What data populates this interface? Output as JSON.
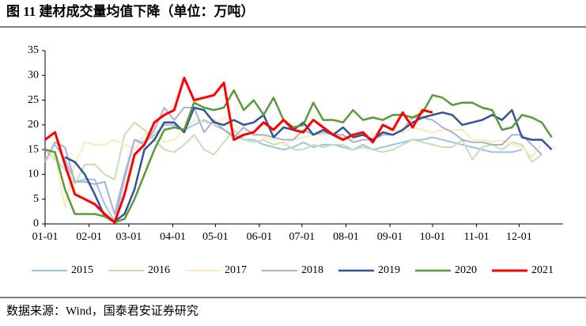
{
  "chart_data": {
    "type": "line",
    "title": "图 11 建材成交量均值下降（单位：万吨）",
    "source": "数据来源：Wind，国泰君安证券研究",
    "x": [
      0,
      7,
      14,
      21,
      28,
      35,
      42,
      49,
      56,
      63,
      70,
      77,
      84,
      91,
      98,
      105,
      112,
      119,
      126,
      133,
      140,
      147,
      154,
      161,
      168,
      175,
      182,
      189,
      196,
      203,
      210,
      217,
      224,
      231,
      238,
      245,
      252,
      259,
      266,
      273,
      280,
      287,
      294,
      301,
      308,
      315,
      322,
      329,
      336,
      343,
      350,
      357
    ],
    "xlim": [
      0,
      365
    ],
    "xticks": [
      {
        "value": 0,
        "label": "01-01"
      },
      {
        "value": 31,
        "label": "02-01"
      },
      {
        "value": 59,
        "label": "03-01"
      },
      {
        "value": 90,
        "label": "04-01"
      },
      {
        "value": 120,
        "label": "05-01"
      },
      {
        "value": 151,
        "label": "06-01"
      },
      {
        "value": 181,
        "label": "07-01"
      },
      {
        "value": 212,
        "label": "08-01"
      },
      {
        "value": 243,
        "label": "09-01"
      },
      {
        "value": 273,
        "label": "10-01"
      },
      {
        "value": 304,
        "label": "11-01"
      },
      {
        "value": 334,
        "label": "12-01"
      }
    ],
    "ylim": [
      0,
      35
    ],
    "yticks": [
      0,
      5,
      10,
      15,
      20,
      25,
      30,
      35
    ],
    "legend": "bottom",
    "series": [
      {
        "name": "2015",
        "color": "#9dc3e6",
        "width": 2,
        "values": [
          null,
          16,
          13,
          8.5,
          9,
          9,
          4,
          0.5,
          9,
          17,
          16.5,
          18,
          20,
          20,
          19,
          20,
          21,
          20,
          19,
          18,
          17,
          17,
          16,
          15.5,
          15,
          15.5,
          16.5,
          15.5,
          16,
          16,
          15.5,
          15,
          16,
          15,
          15.5,
          16,
          16.5,
          17,
          17,
          17.5,
          17,
          16.5,
          16,
          15.5,
          15,
          14.5,
          14.5,
          14.5,
          15,
          null,
          null,
          null
        ]
      },
      {
        "name": "2016",
        "color": "#c5e0b4",
        "width": 2,
        "values": [
          15,
          13,
          11,
          8,
          12,
          12,
          10,
          9,
          18,
          20.5,
          19,
          17,
          15,
          14.5,
          16,
          18,
          15,
          14,
          16.5,
          19,
          17,
          16.5,
          17,
          16,
          16.5,
          15,
          15,
          16,
          15.5,
          16,
          16,
          15,
          15.5,
          15,
          14.5,
          15,
          16,
          17,
          16.5,
          16,
          15.5,
          15.5,
          17,
          13,
          15.5,
          16,
          15,
          16.5,
          16,
          12.5,
          14,
          null
        ]
      },
      {
        "name": "2017",
        "color": "#ffe9b8",
        "width": 2,
        "values": [
          13,
          14,
          3.5,
          12,
          16.5,
          16,
          16,
          17,
          16,
          15,
          18,
          18.5,
          16.5,
          17,
          19,
          21,
          20.5,
          20,
          21.5,
          20,
          19,
          18.5,
          17.5,
          17,
          16,
          17,
          17.5,
          18,
          18,
          18.5,
          17.5,
          17,
          18,
          18,
          18.5,
          19,
          18.5,
          19.5,
          19,
          18.5,
          19,
          19,
          19,
          17,
          17,
          16.5,
          17,
          16,
          15.5,
          13.5,
          16,
          null
        ]
      },
      {
        "name": "2018",
        "color": "#a9b1cf",
        "width": 2,
        "values": [
          12.5,
          16.5,
          15.5,
          8.5,
          8.5,
          8,
          8.5,
          2,
          10,
          17,
          16,
          19,
          23.5,
          21,
          23.5,
          23.5,
          18.5,
          21,
          19,
          17.5,
          19.5,
          18,
          18,
          17.5,
          17,
          17,
          19,
          18,
          18.5,
          18,
          18,
          16.5,
          17,
          17,
          18,
          18,
          19,
          21.5,
          21.5,
          21,
          19.5,
          18.5,
          17,
          16.5,
          16.5,
          16,
          16,
          18,
          18,
          16,
          14,
          null
        ]
      },
      {
        "name": "2019",
        "color": "#2f5597",
        "width": 2.5,
        "values": [
          null,
          null,
          13.5,
          12.5,
          10,
          6,
          1.5,
          0.5,
          2,
          7,
          15,
          17,
          20.5,
          20.5,
          18.5,
          23.5,
          23,
          20.5,
          20,
          21,
          20,
          20.5,
          22,
          17.5,
          19.5,
          19,
          20.5,
          18,
          19,
          18,
          19.5,
          17.5,
          18,
          17,
          18.5,
          18,
          19,
          20.5,
          21.5,
          22,
          22.5,
          22,
          20,
          20.5,
          21,
          22,
          21,
          23,
          17.5,
          17,
          17,
          15
        ]
      },
      {
        "name": "2020",
        "color": "#5b9a3b",
        "width": 2.5,
        "values": [
          15,
          14.5,
          7,
          2,
          2,
          2,
          1.5,
          0.3,
          1,
          5,
          10,
          15,
          19,
          19.5,
          19,
          24.5,
          23.5,
          23,
          23.5,
          27,
          23,
          25,
          22,
          25.5,
          21,
          19.5,
          20,
          24.5,
          21,
          21,
          20.5,
          23,
          21,
          21.5,
          21,
          22,
          22,
          21.5,
          22.5,
          26,
          25.5,
          24,
          24.5,
          24.5,
          23.5,
          23,
          19,
          19.5,
          22,
          21.5,
          20.5,
          17.5
        ]
      },
      {
        "name": "2021",
        "color": "#ff0000",
        "width": 3,
        "values": [
          17,
          18.5,
          12,
          6,
          5,
          4,
          2,
          0.3,
          6,
          14,
          16,
          20.5,
          22,
          23,
          29.5,
          25,
          25.5,
          26,
          28.5,
          17,
          18,
          18.5,
          20.5,
          19,
          21,
          19,
          18.5,
          21,
          19.5,
          18,
          17,
          18,
          18.5,
          16.5,
          20,
          19,
          22.5,
          19.5,
          23,
          22.5,
          null,
          null,
          null,
          null,
          null,
          null,
          null,
          null,
          null,
          null,
          null,
          null
        ]
      }
    ]
  }
}
